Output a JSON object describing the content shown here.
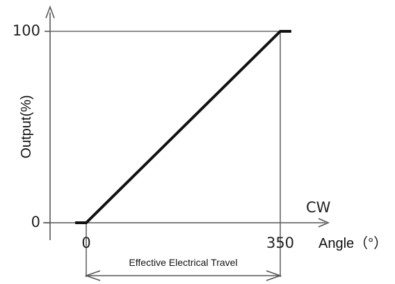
{
  "chart_data": {
    "type": "line",
    "ylabel": "Output(%)",
    "xlabel": "Angle（°）",
    "direction_label": "CW",
    "x_ticks": [
      "0",
      "350"
    ],
    "y_ticks": [
      "0",
      "100"
    ],
    "xlim": [
      -20,
      350
    ],
    "ylim": [
      0,
      100
    ],
    "series": [
      {
        "x": [
          -20,
          0,
          350,
          370
        ],
        "y": [
          0,
          0,
          100,
          100
        ]
      }
    ],
    "annotations": [
      {
        "text": "Effective Electrical Travel",
        "from_x": 0,
        "to_x": 350
      }
    ],
    "grid": false,
    "legend": "none",
    "colors": {
      "line": "#111111",
      "axis": "#555555",
      "guide": "#666666"
    }
  }
}
